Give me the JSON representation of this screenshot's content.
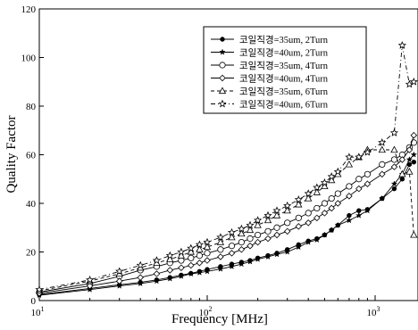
{
  "chart_data": {
    "type": "line",
    "xlabel": "Frequency [MHz]",
    "ylabel": "Quality Factor",
    "xscale": "log",
    "xlim": [
      10,
      1800
    ],
    "ylim": [
      0,
      120
    ],
    "xticks": [
      {
        "value": 10,
        "base": "10",
        "exp": "1"
      },
      {
        "value": 100,
        "base": "10",
        "exp": "2"
      },
      {
        "value": 1000,
        "base": "10",
        "exp": "3"
      }
    ],
    "yticks": [
      0,
      20,
      40,
      60,
      80,
      100,
      120
    ],
    "legend_position": "top-right",
    "grid": false,
    "series": [
      {
        "name": "코일직경=35um, 2Turn",
        "marker": "filled-circle",
        "dash": "",
        "x": [
          10,
          20,
          30,
          40,
          50,
          60,
          70,
          80,
          90,
          100,
          120,
          140,
          160,
          180,
          200,
          230,
          260,
          300,
          350,
          400,
          450,
          500,
          550,
          600,
          700,
          800,
          900,
          1100,
          1300,
          1450,
          1600,
          1700
        ],
        "y": [
          2.5,
          5,
          6.5,
          7.5,
          8.5,
          9.5,
          10.5,
          11.2,
          12,
          12.8,
          14,
          15,
          15.8,
          16.5,
          17.5,
          18.5,
          19.5,
          21,
          23,
          24.5,
          25.5,
          27,
          29,
          31,
          35,
          37,
          37.5,
          42,
          46,
          50,
          56,
          57
        ]
      },
      {
        "name": "코일직경=40um, 2Turn",
        "marker": "star",
        "dash": "",
        "x": [
          10,
          20,
          30,
          40,
          50,
          60,
          70,
          80,
          90,
          100,
          120,
          140,
          160,
          180,
          200,
          230,
          260,
          300,
          350,
          400,
          450,
          500,
          550,
          600,
          700,
          800,
          900,
          1100,
          1300,
          1450,
          1600,
          1700
        ],
        "y": [
          2.2,
          4.5,
          6,
          7,
          8,
          9,
          10,
          11,
          11.5,
          12,
          13,
          14,
          15,
          16,
          17,
          18,
          19,
          20,
          22,
          24,
          25,
          27,
          29,
          31,
          33,
          35,
          37,
          42,
          48,
          52,
          58,
          60
        ]
      },
      {
        "name": "코일직경=35um, 4Turn",
        "marker": "open-circle",
        "dash": "",
        "x": [
          10,
          20,
          30,
          40,
          50,
          60,
          70,
          80,
          90,
          100,
          120,
          140,
          160,
          180,
          200,
          230,
          260,
          300,
          350,
          400,
          450,
          500,
          550,
          600,
          700,
          800,
          900,
          1100,
          1300,
          1450,
          1600,
          1700
        ],
        "y": [
          3.5,
          7,
          10,
          12.5,
          14,
          15.5,
          16.5,
          17.5,
          18.5,
          19.5,
          21,
          22.5,
          24,
          25.5,
          27,
          28.5,
          30,
          32,
          34,
          36,
          38,
          40,
          42,
          44,
          47,
          50,
          52,
          56,
          58,
          60,
          63,
          65
        ]
      },
      {
        "name": "코일직경=40um, 4Turn",
        "marker": "open-diamond",
        "dash": "",
        "x": [
          10,
          20,
          30,
          40,
          50,
          60,
          70,
          80,
          90,
          100,
          120,
          140,
          160,
          180,
          200,
          230,
          260,
          300,
          350,
          400,
          450,
          500,
          550,
          600,
          700,
          800,
          900,
          1100,
          1300,
          1450,
          1600,
          1700
        ],
        "y": [
          3,
          6,
          8,
          9.5,
          11,
          12.5,
          13.5,
          14.5,
          15.5,
          16.5,
          18,
          19.5,
          21,
          22.5,
          24,
          25.5,
          27,
          28.5,
          30.5,
          32,
          34,
          36,
          38,
          40,
          43,
          46,
          48,
          52,
          55,
          58,
          62,
          68
        ]
      },
      {
        "name": "코일직경=35um, 6Turn",
        "marker": "open-triangle",
        "dash": "4,3",
        "x": [
          10,
          20,
          30,
          40,
          50,
          60,
          70,
          80,
          90,
          100,
          120,
          140,
          160,
          180,
          200,
          230,
          260,
          300,
          350,
          400,
          450,
          500,
          550,
          600,
          700,
          800,
          900,
          1100,
          1300,
          1450,
          1600,
          1700
        ],
        "y": [
          4,
          8,
          11,
          13.5,
          15.5,
          17,
          18.5,
          20,
          21,
          22,
          24,
          26,
          27.5,
          29,
          31,
          33,
          35,
          37,
          39.5,
          42,
          44.5,
          47,
          49.5,
          52,
          56,
          59,
          62,
          62,
          62,
          52,
          53,
          27
        ]
      },
      {
        "name": "코일직경=40um, 6Turn",
        "marker": "open-star",
        "dash": "5,3,1,3",
        "x": [
          10,
          20,
          30,
          40,
          50,
          60,
          70,
          80,
          90,
          100,
          120,
          140,
          160,
          180,
          200,
          230,
          260,
          300,
          350,
          400,
          450,
          500,
          550,
          600,
          700,
          800,
          900,
          1100,
          1300,
          1450,
          1600,
          1700
        ],
        "y": [
          4.5,
          8.5,
          12,
          14.5,
          16.5,
          18.5,
          20,
          21.5,
          23,
          24,
          26,
          28,
          29.5,
          31,
          33,
          35,
          37,
          39,
          41.5,
          44,
          46.5,
          48.5,
          51,
          53,
          59,
          59,
          61,
          65,
          69,
          105,
          89,
          90
        ]
      }
    ]
  }
}
